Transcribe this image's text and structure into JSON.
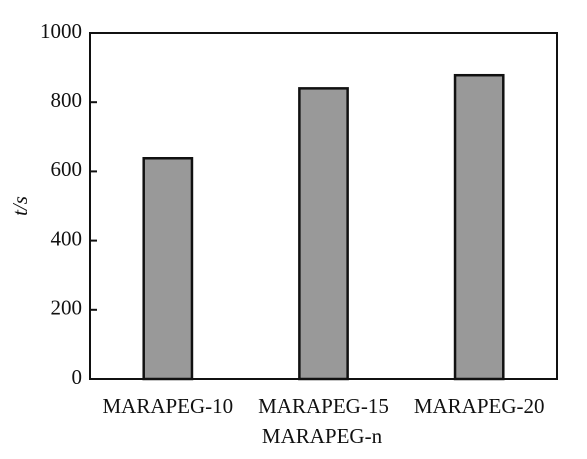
{
  "chart_data": {
    "type": "bar",
    "x_label": "MARAPEG-n",
    "y_label": "t/s",
    "categories": [
      "MARAPEG-10",
      "MARAPEG-15",
      "MARAPEG-20"
    ],
    "values": [
      638,
      840,
      878
    ],
    "color": "#999999",
    "ylim": [
      0,
      1000
    ],
    "yticks": [
      0,
      200,
      400,
      600,
      800,
      1000
    ],
    "grid": false
  }
}
